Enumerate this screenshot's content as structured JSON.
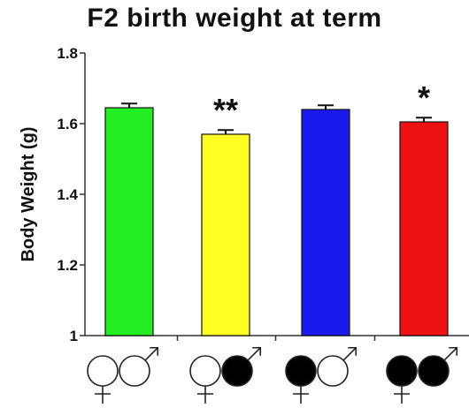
{
  "chart_data": {
    "type": "bar",
    "title": "F2 birth weight at term",
    "xlabel": "",
    "ylabel": "Body Weight (g)",
    "ylim": [
      1,
      1.8
    ],
    "yticks": [
      "1",
      "1.2",
      "1.4",
      "1.6",
      "1.8"
    ],
    "grid": false,
    "categories": [
      "white♀ × white♂",
      "white♀ × black♂",
      "black♀ × white♂",
      "black♀ × black♂"
    ],
    "values": [
      1.645,
      1.57,
      1.64,
      1.605
    ],
    "errors": [
      0.012,
      0.012,
      0.012,
      0.012
    ],
    "significance": [
      "",
      "**",
      "",
      "*"
    ],
    "colors": [
      "#22ee22",
      "#ffff22",
      "#1a1aee",
      "#ee1111"
    ],
    "category_symbols": [
      {
        "female_fill": "white",
        "male_fill": "white"
      },
      {
        "female_fill": "white",
        "male_fill": "black"
      },
      {
        "female_fill": "black",
        "male_fill": "white"
      },
      {
        "female_fill": "black",
        "male_fill": "black"
      }
    ]
  }
}
